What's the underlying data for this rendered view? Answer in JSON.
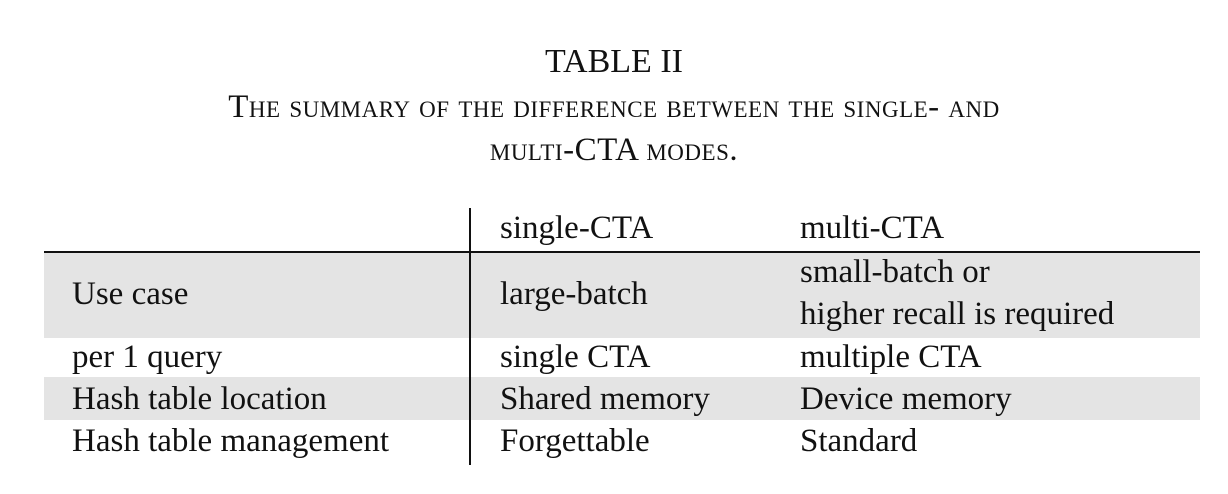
{
  "caption": {
    "table_number": "TABLE II",
    "line1": "The summary of the difference between the single- and",
    "line2": "multi-CTA modes."
  },
  "table": {
    "header": [
      "",
      "single-CTA",
      "multi-CTA"
    ],
    "rows": [
      {
        "label": "Use case",
        "single": "large-batch",
        "multi_lines": [
          "small-batch or",
          "higher recall is required"
        ],
        "shaded": true
      },
      {
        "label": "per 1 query",
        "single": "single CTA",
        "multi_lines": [
          "multiple CTA"
        ],
        "shaded": false
      },
      {
        "label": "Hash table location",
        "single": "Shared memory",
        "multi_lines": [
          "Device memory"
        ],
        "shaded": true
      },
      {
        "label": "Hash table management",
        "single": "Forgettable",
        "multi_lines": [
          "Standard"
        ],
        "shaded": false
      }
    ],
    "shade_color": "#e4e4e4"
  }
}
